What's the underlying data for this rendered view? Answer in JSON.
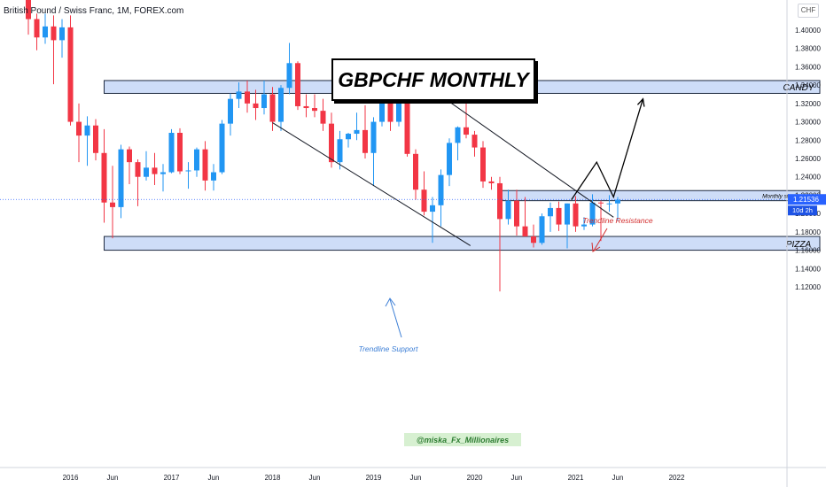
{
  "header": {
    "symbol_title": "British Pound / Swiss Franc, 1M, FOREX.com",
    "currency": "CHF"
  },
  "chart_data": {
    "type": "candlestick",
    "title": "GBPCHF MONTHLY",
    "watermark": "@miska_Fx_Millionaires",
    "price_axis": {
      "labels": [
        "1.40000",
        "1.38000",
        "1.36000",
        "1.34000",
        "1.32000",
        "1.30000",
        "1.28000",
        "1.26000",
        "1.24000",
        "1.22000",
        "1.20000",
        "1.18000",
        "1.16000",
        "1.14000",
        "1.12000"
      ],
      "ylim": [
        1.115,
        1.415
      ]
    },
    "time_axis": {
      "labels": [
        "2016",
        "Jun",
        "2017",
        "Jun",
        "2018",
        "Jun",
        "2019",
        "Jun",
        "2020",
        "Jun",
        "2021",
        "Jun",
        "2022"
      ],
      "months": [
        0,
        5,
        12,
        17,
        24,
        29,
        36,
        41,
        48,
        53,
        60,
        65,
        72
      ]
    },
    "current_price": {
      "value": 1.21536,
      "label": "1.21536",
      "countdown": "10d 2h"
    },
    "zones": [
      {
        "label": "CANDY",
        "low": 1.331,
        "high": 1.345,
        "from_month": 4,
        "to_month": 89
      },
      {
        "label": "Monthly structure",
        "low": 1.214,
        "high": 1.225,
        "from_month": 51,
        "to_month": 89
      },
      {
        "label": "PIZZA",
        "low": 1.16,
        "high": 1.175,
        "from_month": 4,
        "to_month": 89
      }
    ],
    "trendlines": [
      {
        "label": "Trendline Resistance",
        "from": [
          42.5,
          1.338
        ],
        "to": [
          64.5,
          1.196
        ]
      },
      {
        "label": "Trendline Support",
        "from": [
          24,
          1.299
        ],
        "to": [
          47.5,
          1.165
        ]
      }
    ],
    "projection": [
      [
        59.5,
        1.215
      ],
      [
        62.5,
        1.256
      ],
      [
        64.5,
        1.218
      ],
      [
        68.0,
        1.325
      ]
    ],
    "colors": {
      "up": "#2196f3",
      "down": "#f23645",
      "zone_fill": "#c5d7f7",
      "zone_border": "#1e2a40",
      "annotation_red": "#d32f2f",
      "annotation_blue": "#3d7fd6",
      "watermark_bg": "#d7f0d1",
      "watermark_text": "#2e7d32",
      "price_label": "#2962ff"
    },
    "candles": [
      {
        "o": 1.471,
        "h": 1.478,
        "l": 1.395,
        "c": 1.412
      },
      {
        "o": 1.412,
        "h": 1.418,
        "l": 1.378,
        "c": 1.392
      },
      {
        "o": 1.392,
        "h": 1.418,
        "l": 1.385,
        "c": 1.404
      },
      {
        "o": 1.404,
        "h": 1.416,
        "l": 1.341,
        "c": 1.389
      },
      {
        "o": 1.389,
        "h": 1.412,
        "l": 1.37,
        "c": 1.403
      },
      {
        "o": 1.403,
        "h": 1.416,
        "l": 1.296,
        "c": 1.3
      },
      {
        "o": 1.3,
        "h": 1.32,
        "l": 1.256,
        "c": 1.285
      },
      {
        "o": 1.285,
        "h": 1.306,
        "l": 1.252,
        "c": 1.296
      },
      {
        "o": 1.296,
        "h": 1.303,
        "l": 1.258,
        "c": 1.266
      },
      {
        "o": 1.266,
        "h": 1.292,
        "l": 1.19,
        "c": 1.212
      },
      {
        "o": 1.212,
        "h": 1.252,
        "l": 1.173,
        "c": 1.207
      },
      {
        "o": 1.207,
        "h": 1.275,
        "l": 1.195,
        "c": 1.27
      },
      {
        "o": 1.27,
        "h": 1.273,
        "l": 1.232,
        "c": 1.256
      },
      {
        "o": 1.256,
        "h": 1.259,
        "l": 1.208,
        "c": 1.24
      },
      {
        "o": 1.24,
        "h": 1.268,
        "l": 1.236,
        "c": 1.25
      },
      {
        "o": 1.25,
        "h": 1.266,
        "l": 1.231,
        "c": 1.243
      },
      {
        "o": 1.243,
        "h": 1.254,
        "l": 1.224,
        "c": 1.245
      },
      {
        "o": 1.245,
        "h": 1.292,
        "l": 1.244,
        "c": 1.288
      },
      {
        "o": 1.288,
        "h": 1.293,
        "l": 1.243,
        "c": 1.246
      },
      {
        "o": 1.246,
        "h": 1.256,
        "l": 1.227,
        "c": 1.247
      },
      {
        "o": 1.247,
        "h": 1.272,
        "l": 1.24,
        "c": 1.27
      },
      {
        "o": 1.27,
        "h": 1.279,
        "l": 1.225,
        "c": 1.236
      },
      {
        "o": 1.236,
        "h": 1.254,
        "l": 1.225,
        "c": 1.245
      },
      {
        "o": 1.245,
        "h": 1.302,
        "l": 1.243,
        "c": 1.298
      },
      {
        "o": 1.298,
        "h": 1.331,
        "l": 1.285,
        "c": 1.325
      },
      {
        "o": 1.325,
        "h": 1.343,
        "l": 1.315,
        "c": 1.333
      },
      {
        "o": 1.333,
        "h": 1.345,
        "l": 1.31,
        "c": 1.32
      },
      {
        "o": 1.32,
        "h": 1.335,
        "l": 1.302,
        "c": 1.315
      },
      {
        "o": 1.315,
        "h": 1.345,
        "l": 1.308,
        "c": 1.33
      },
      {
        "o": 1.33,
        "h": 1.338,
        "l": 1.29,
        "c": 1.3
      },
      {
        "o": 1.3,
        "h": 1.34,
        "l": 1.29,
        "c": 1.337
      },
      {
        "o": 1.337,
        "h": 1.386,
        "l": 1.33,
        "c": 1.364
      },
      {
        "o": 1.364,
        "h": 1.366,
        "l": 1.313,
        "c": 1.317
      },
      {
        "o": 1.317,
        "h": 1.33,
        "l": 1.305,
        "c": 1.315
      },
      {
        "o": 1.315,
        "h": 1.33,
        "l": 1.305,
        "c": 1.312
      },
      {
        "o": 1.312,
        "h": 1.325,
        "l": 1.29,
        "c": 1.298
      },
      {
        "o": 1.298,
        "h": 1.31,
        "l": 1.25,
        "c": 1.256
      },
      {
        "o": 1.256,
        "h": 1.29,
        "l": 1.248,
        "c": 1.281
      },
      {
        "o": 1.281,
        "h": 1.288,
        "l": 1.272,
        "c": 1.287
      },
      {
        "o": 1.287,
        "h": 1.31,
        "l": 1.28,
        "c": 1.291
      },
      {
        "o": 1.291,
        "h": 1.318,
        "l": 1.26,
        "c": 1.266
      },
      {
        "o": 1.266,
        "h": 1.305,
        "l": 1.23,
        "c": 1.3
      },
      {
        "o": 1.3,
        "h": 1.343,
        "l": 1.295,
        "c": 1.332
      },
      {
        "o": 1.332,
        "h": 1.343,
        "l": 1.29,
        "c": 1.3
      },
      {
        "o": 1.3,
        "h": 1.333,
        "l": 1.295,
        "c": 1.332
      },
      {
        "o": 1.332,
        "h": 1.333,
        "l": 1.262,
        "c": 1.265
      },
      {
        "o": 1.265,
        "h": 1.27,
        "l": 1.215,
        "c": 1.226
      },
      {
        "o": 1.226,
        "h": 1.246,
        "l": 1.198,
        "c": 1.202
      },
      {
        "o": 1.202,
        "h": 1.218,
        "l": 1.168,
        "c": 1.209
      },
      {
        "o": 1.209,
        "h": 1.248,
        "l": 1.186,
        "c": 1.242
      },
      {
        "o": 1.242,
        "h": 1.282,
        "l": 1.23,
        "c": 1.277
      },
      {
        "o": 1.277,
        "h": 1.295,
        "l": 1.258,
        "c": 1.294
      },
      {
        "o": 1.294,
        "h": 1.333,
        "l": 1.282,
        "c": 1.286
      },
      {
        "o": 1.286,
        "h": 1.29,
        "l": 1.262,
        "c": 1.272
      },
      {
        "o": 1.272,
        "h": 1.279,
        "l": 1.228,
        "c": 1.235
      },
      {
        "o": 1.235,
        "h": 1.24,
        "l": 1.226,
        "c": 1.233
      },
      {
        "o": 1.233,
        "h": 1.24,
        "l": 1.115,
        "c": 1.194
      },
      {
        "o": 1.194,
        "h": 1.226,
        "l": 1.188,
        "c": 1.214
      },
      {
        "o": 1.214,
        "h": 1.226,
        "l": 1.176,
        "c": 1.186
      },
      {
        "o": 1.186,
        "h": 1.218,
        "l": 1.175,
        "c": 1.175
      },
      {
        "o": 1.175,
        "h": 1.188,
        "l": 1.163,
        "c": 1.168
      },
      {
        "o": 1.168,
        "h": 1.2,
        "l": 1.166,
        "c": 1.197
      },
      {
        "o": 1.197,
        "h": 1.212,
        "l": 1.18,
        "c": 1.206
      },
      {
        "o": 1.206,
        "h": 1.213,
        "l": 1.181,
        "c": 1.188
      },
      {
        "o": 1.188,
        "h": 1.211,
        "l": 1.162,
        "c": 1.211
      },
      {
        "o": 1.211,
        "h": 1.219,
        "l": 1.18,
        "c": 1.186
      },
      {
        "o": 1.186,
        "h": 1.196,
        "l": 1.182,
        "c": 1.188
      },
      {
        "o": 1.188,
        "h": 1.221,
        "l": 1.186,
        "c": 1.212
      },
      {
        "o": 1.212,
        "h": 1.214,
        "l": 1.17,
        "c": 1.211
      },
      {
        "o": 1.211,
        "h": 1.22,
        "l": 1.202,
        "c": 1.211
      },
      {
        "o": 1.211,
        "h": 1.218,
        "l": 1.192,
        "c": 1.215
      }
    ]
  }
}
